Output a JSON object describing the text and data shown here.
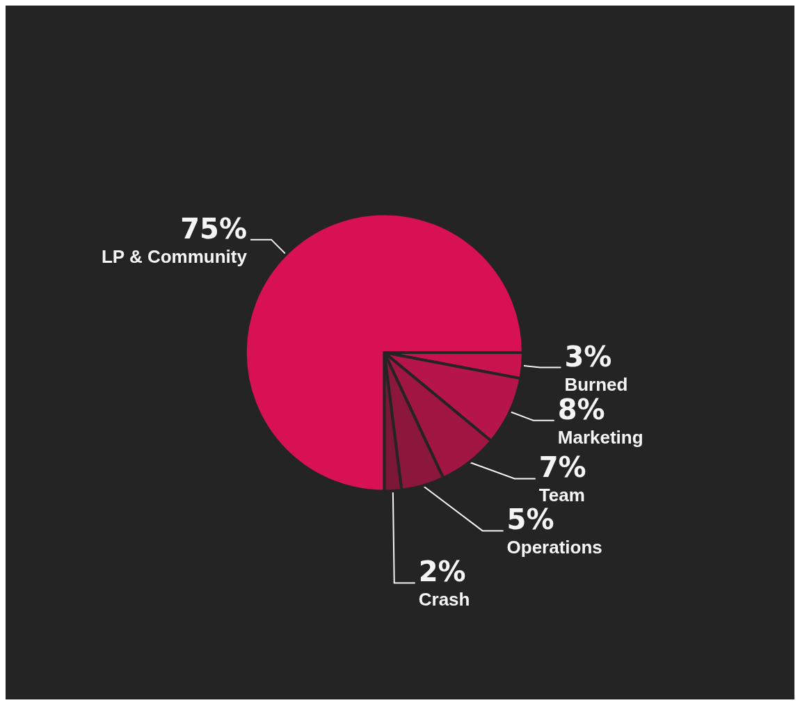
{
  "chart_data": {
    "type": "pie",
    "categories": [
      "Burned",
      "Marketing",
      "Team",
      "Operations",
      "Crash",
      "LP & Community"
    ],
    "values": [
      3,
      8,
      7,
      5,
      2,
      75
    ],
    "value_labels": [
      "3%",
      "8%",
      "7%",
      "5%",
      "2%",
      "75%"
    ],
    "colors": [
      "#c8134e",
      "#b5154a",
      "#a01542",
      "#8c173d",
      "#7c1836",
      "#d81155"
    ],
    "legend": false
  }
}
